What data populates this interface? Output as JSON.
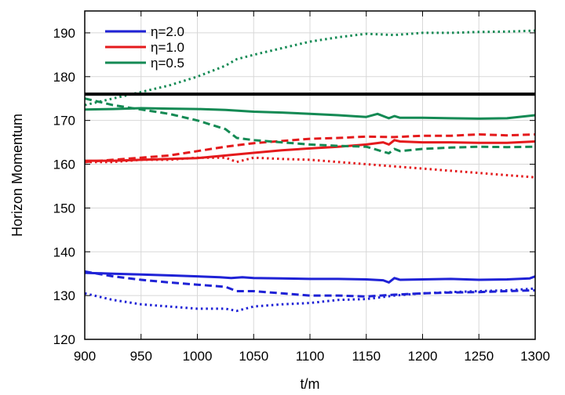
{
  "colors": {
    "blue": "#1f22d6",
    "red": "#e41a1c",
    "green": "#148a54",
    "black": "#000000"
  },
  "chart_data": {
    "type": "line",
    "title": "",
    "xlabel": "t/m",
    "ylabel": "Horizon Momentum",
    "xlim": [
      900,
      1300
    ],
    "ylim": [
      120,
      195
    ],
    "xticks": [
      900,
      950,
      1000,
      1050,
      1100,
      1150,
      1200,
      1250,
      1300
    ],
    "yticks": [
      120,
      130,
      140,
      150,
      160,
      170,
      180,
      190
    ],
    "grid": true,
    "legend_position": "top-left",
    "legend": [
      {
        "label": "η=2.0",
        "color": "#1f22d6"
      },
      {
        "label": "η=1.0",
        "color": "#e41a1c"
      },
      {
        "label": "η=0.5",
        "color": "#148a54"
      }
    ],
    "reference_line": {
      "y": 176,
      "color": "#000000"
    },
    "series": [
      {
        "group": "η=2.0",
        "style": "solid",
        "color": "#1f22d6",
        "x": [
          900,
          925,
          950,
          975,
          1000,
          1020,
          1030,
          1040,
          1050,
          1075,
          1100,
          1125,
          1150,
          1165,
          1170,
          1175,
          1180,
          1200,
          1225,
          1250,
          1275,
          1295,
          1300
        ],
        "y": [
          135.2,
          135.0,
          134.8,
          134.6,
          134.4,
          134.2,
          134.0,
          134.2,
          134.0,
          133.9,
          133.8,
          133.8,
          133.7,
          133.5,
          133.0,
          134.0,
          133.6,
          133.7,
          133.8,
          133.6,
          133.7,
          133.9,
          134.4
        ]
      },
      {
        "group": "η=2.0",
        "style": "dashed",
        "color": "#1f22d6",
        "x": [
          900,
          925,
          950,
          975,
          1000,
          1025,
          1035,
          1050,
          1075,
          1100,
          1125,
          1150,
          1175,
          1200,
          1225,
          1250,
          1275,
          1300
        ],
        "y": [
          135.5,
          134.4,
          133.6,
          133.0,
          132.5,
          132.0,
          131.0,
          131.0,
          130.5,
          130.0,
          130.0,
          129.8,
          130.2,
          130.5,
          130.7,
          130.8,
          131.0,
          131.2
        ]
      },
      {
        "group": "η=2.0",
        "style": "dotted",
        "color": "#1f22d6",
        "x": [
          900,
          925,
          950,
          975,
          1000,
          1025,
          1035,
          1050,
          1075,
          1100,
          1125,
          1150,
          1175,
          1200,
          1225,
          1250,
          1275,
          1300
        ],
        "y": [
          130.5,
          129.0,
          128.0,
          127.5,
          127.0,
          127.0,
          126.5,
          127.5,
          128.0,
          128.3,
          129.0,
          129.2,
          130.0,
          130.5,
          130.8,
          131.0,
          131.2,
          131.6
        ]
      },
      {
        "group": "η=1.0",
        "style": "solid",
        "color": "#e41a1c",
        "x": [
          900,
          925,
          950,
          975,
          1000,
          1025,
          1050,
          1075,
          1100,
          1125,
          1150,
          1165,
          1170,
          1175,
          1180,
          1200,
          1225,
          1250,
          1275,
          1300
        ],
        "y": [
          160.8,
          160.8,
          161.0,
          161.2,
          161.4,
          162.0,
          162.6,
          163.2,
          163.6,
          164.0,
          164.5,
          165.0,
          164.5,
          165.5,
          165.2,
          165.0,
          165.0,
          164.9,
          164.9,
          165.2
        ]
      },
      {
        "group": "η=1.0",
        "style": "dashed",
        "color": "#e41a1c",
        "x": [
          900,
          925,
          950,
          975,
          1000,
          1025,
          1050,
          1075,
          1100,
          1125,
          1150,
          1175,
          1200,
          1225,
          1250,
          1275,
          1300
        ],
        "y": [
          160.5,
          161.0,
          161.5,
          162.0,
          163.0,
          164.0,
          164.8,
          165.3,
          165.8,
          166.0,
          166.3,
          166.2,
          166.5,
          166.5,
          166.8,
          166.6,
          166.8
        ]
      },
      {
        "group": "η=1.0",
        "style": "dotted",
        "color": "#e41a1c",
        "x": [
          900,
          925,
          950,
          975,
          1000,
          1025,
          1035,
          1050,
          1075,
          1100,
          1125,
          1150,
          1175,
          1200,
          1225,
          1250,
          1275,
          1300
        ],
        "y": [
          160.5,
          160.5,
          161.0,
          161.0,
          161.5,
          161.5,
          160.5,
          161.5,
          161.2,
          161.0,
          160.5,
          160.0,
          159.5,
          159.0,
          158.5,
          158.0,
          157.5,
          157.0
        ]
      },
      {
        "group": "η=0.5",
        "style": "solid",
        "color": "#148a54",
        "x": [
          900,
          925,
          950,
          975,
          1000,
          1025,
          1050,
          1075,
          1100,
          1125,
          1150,
          1160,
          1170,
          1175,
          1180,
          1200,
          1225,
          1250,
          1275,
          1300
        ],
        "y": [
          172.5,
          172.6,
          172.8,
          172.7,
          172.6,
          172.4,
          172.0,
          171.8,
          171.5,
          171.2,
          170.8,
          171.5,
          170.5,
          171.0,
          170.6,
          170.6,
          170.5,
          170.4,
          170.5,
          171.2
        ]
      },
      {
        "group": "η=0.5",
        "style": "dashed",
        "color": "#148a54",
        "x": [
          900,
          925,
          950,
          975,
          1000,
          1025,
          1035,
          1050,
          1075,
          1100,
          1125,
          1150,
          1170,
          1175,
          1180,
          1200,
          1225,
          1250,
          1275,
          1300
        ],
        "y": [
          175.0,
          173.5,
          172.5,
          171.5,
          170.0,
          168.0,
          166.0,
          165.5,
          165.0,
          164.5,
          164.2,
          164.0,
          162.5,
          163.5,
          163.0,
          163.5,
          163.8,
          164.0,
          163.9,
          164.0
        ]
      },
      {
        "group": "η=0.5",
        "style": "dotted",
        "color": "#148a54",
        "x": [
          900,
          925,
          950,
          975,
          1000,
          1025,
          1035,
          1050,
          1075,
          1100,
          1125,
          1150,
          1175,
          1200,
          1225,
          1250,
          1275,
          1300
        ],
        "y": [
          173.5,
          175.0,
          176.5,
          178.0,
          180.0,
          182.5,
          184.0,
          185.0,
          186.5,
          188.0,
          189.0,
          189.8,
          189.5,
          190.0,
          190.0,
          190.2,
          190.3,
          190.5
        ]
      }
    ]
  }
}
